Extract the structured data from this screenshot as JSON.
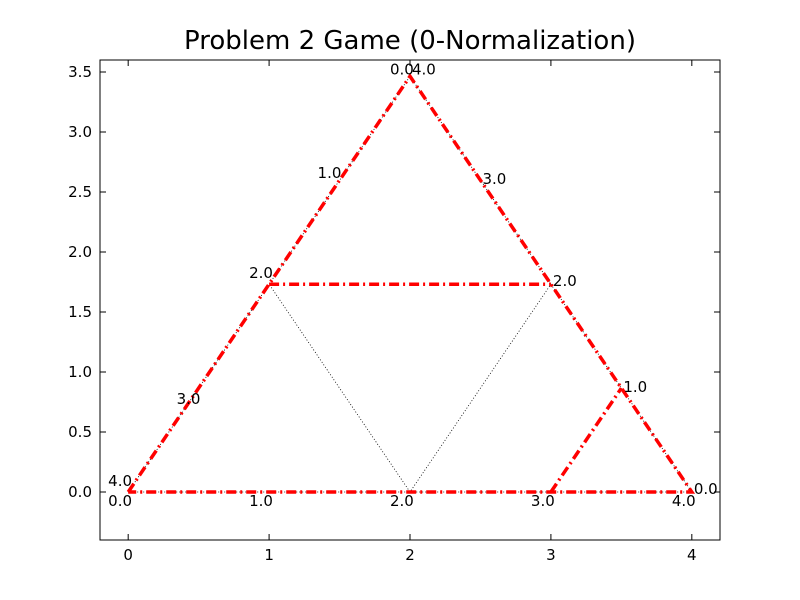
{
  "chart_data": {
    "type": "line",
    "title": "Problem 2 Game (0-Normalization)",
    "xlabel": "",
    "ylabel": "",
    "xlim": [
      -0.2,
      4.2
    ],
    "ylim": [
      -0.4,
      3.6
    ],
    "xticks": [
      "0",
      "1",
      "2",
      "3",
      "4"
    ],
    "yticks": [
      "0.0",
      "0.5",
      "1.0",
      "1.5",
      "2.0",
      "2.5",
      "3.0",
      "3.5"
    ],
    "grid": false,
    "series": [
      {
        "style": "dotted",
        "color": "#000000",
        "points": [
          [
            0,
            0
          ],
          [
            1,
            1.732
          ],
          [
            2,
            0
          ],
          [
            3,
            1.732
          ],
          [
            2,
            3.464
          ],
          [
            1,
            1.732
          ]
        ]
      },
      {
        "style": "dotted",
        "color": "#000000",
        "points": [
          [
            0,
            0
          ],
          [
            4,
            0
          ]
        ]
      },
      {
        "style": "dotted",
        "color": "#000000",
        "points": [
          [
            3,
            1.732
          ],
          [
            4,
            0
          ]
        ]
      },
      {
        "style": "dashed",
        "color": "#ff0000",
        "points": [
          [
            0,
            0
          ],
          [
            2,
            3.464
          ],
          [
            4,
            0
          ],
          [
            0,
            0
          ]
        ]
      },
      {
        "style": "dashed",
        "color": "#ff0000",
        "points": [
          [
            1,
            1.732
          ],
          [
            3,
            1.732
          ]
        ]
      },
      {
        "style": "dashed",
        "color": "#ff0000",
        "points": [
          [
            3,
            0
          ],
          [
            3.5,
            0.866
          ]
        ]
      }
    ],
    "annotations": [
      {
        "text": "0.0",
        "x": 2.0,
        "y": 3.464,
        "dx": -20,
        "dy": -2
      },
      {
        "text": "4.0",
        "x": 2.0,
        "y": 3.464,
        "dx": 2,
        "dy": -2
      },
      {
        "text": "1.0",
        "x": 1.5,
        "y": 2.598,
        "dx": -22,
        "dy": -2
      },
      {
        "text": "3.0",
        "x": 2.5,
        "y": 2.598,
        "dx": 2,
        "dy": 4
      },
      {
        "text": "2.0",
        "x": 1.0,
        "y": 1.732,
        "dx": -20,
        "dy": -6
      },
      {
        "text": "2.0",
        "x": 3.0,
        "y": 1.732,
        "dx": 2,
        "dy": 2
      },
      {
        "text": "3.0",
        "x": 0.5,
        "y": 0.866,
        "dx": -22,
        "dy": 16
      },
      {
        "text": "1.0",
        "x": 3.5,
        "y": 0.866,
        "dx": 2,
        "dy": 4
      },
      {
        "text": "4.0",
        "x": 0.0,
        "y": 0.0,
        "dx": -20,
        "dy": -6
      },
      {
        "text": "0.0",
        "x": 0.0,
        "y": 0.0,
        "dx": -20,
        "dy": 14
      },
      {
        "text": "1.0",
        "x": 1.0,
        "y": 0.0,
        "dx": -20,
        "dy": 14
      },
      {
        "text": "2.0",
        "x": 2.0,
        "y": 0.0,
        "dx": -20,
        "dy": 14
      },
      {
        "text": "3.0",
        "x": 3.0,
        "y": 0.0,
        "dx": -20,
        "dy": 14
      },
      {
        "text": "4.0",
        "x": 4.0,
        "y": 0.0,
        "dx": -20,
        "dy": 14
      },
      {
        "text": "0.0",
        "x": 4.0,
        "y": 0.0,
        "dx": 2,
        "dy": 2
      }
    ]
  }
}
